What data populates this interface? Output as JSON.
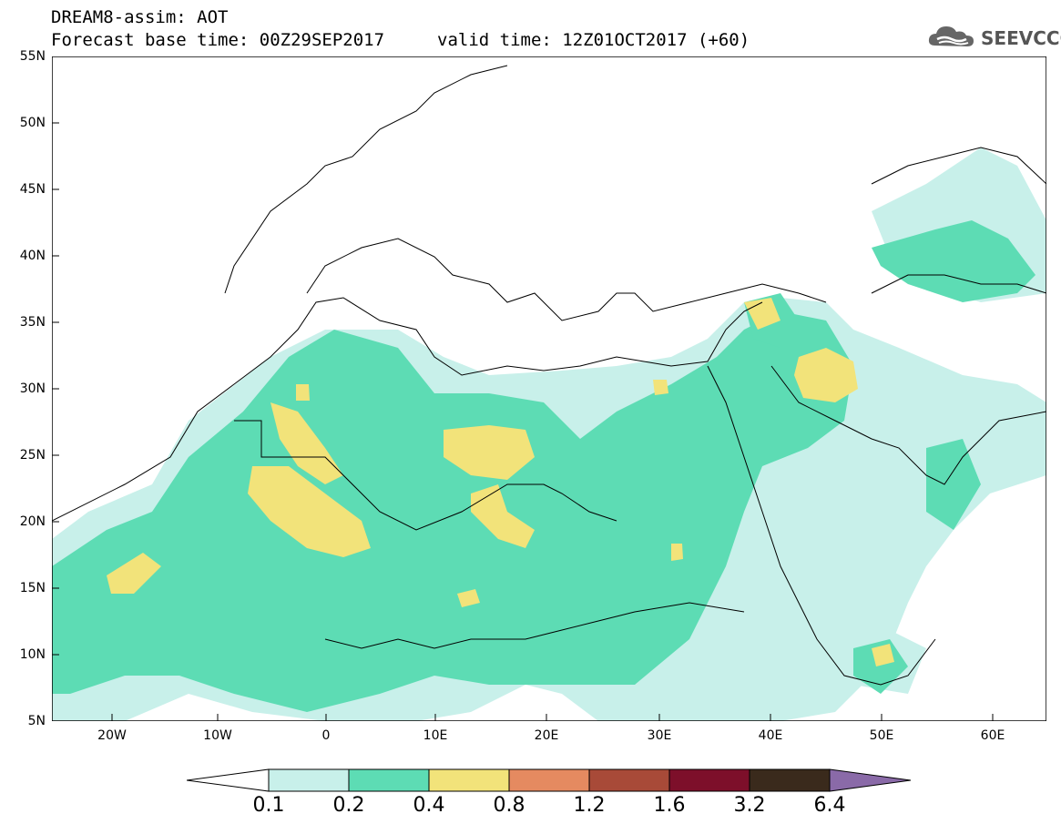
{
  "header": {
    "line1": "DREAM8-assim: AOT",
    "line2": "Forecast base time: 00Z29SEP2017",
    "valid": "valid time: 12Z01OCT2017 (+60)"
  },
  "logo": {
    "text": "SEEVCCC",
    "icon": "cloud-icon"
  },
  "map": {
    "lat_labels": [
      "55N",
      "50N",
      "45N",
      "40N",
      "35N",
      "30N",
      "25N",
      "20N",
      "15N",
      "10N",
      "5N"
    ],
    "lon_labels": [
      "20W",
      "10W",
      "0",
      "10E",
      "20E",
      "30E",
      "40E",
      "50E",
      "60E"
    ]
  },
  "colorbar": {
    "labels": [
      "0.1",
      "0.2",
      "0.4",
      "0.8",
      "1.2",
      "1.6",
      "3.2",
      "6.4"
    ],
    "colors": [
      "#ffffff",
      "#c8f0ea",
      "#5ddcb4",
      "#f2e37a",
      "#e58a60",
      "#a84a38",
      "#7d0f2a",
      "#3a2a1c",
      "#8a6aa8"
    ]
  },
  "colors": {
    "low": "#c8f0ea",
    "mid": "#5ddcb4",
    "high": "#f2e37a"
  }
}
